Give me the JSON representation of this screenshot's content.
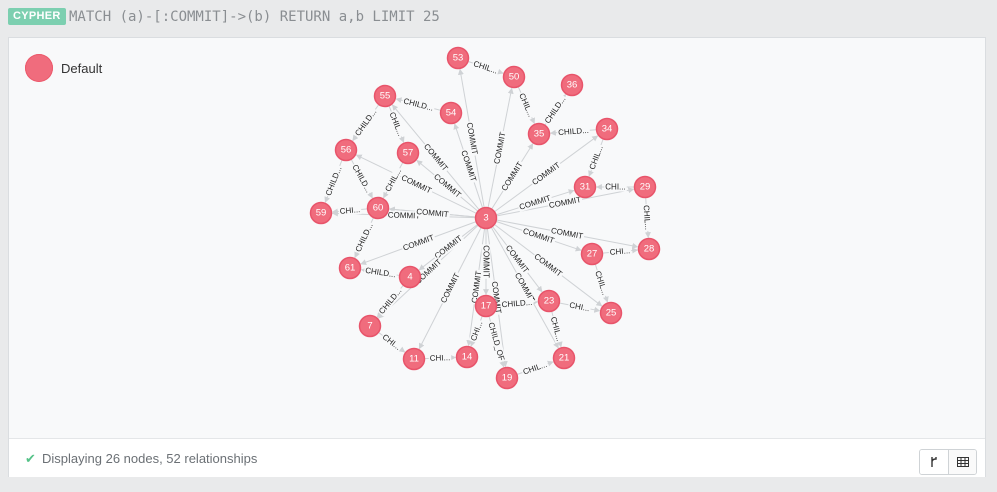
{
  "query": {
    "badge": "CYPHER",
    "text": "MATCH (a)-[:COMMIT]->(b) RETURN a,b LIMIT 25"
  },
  "legend": {
    "label": "Default",
    "color": "#f06c7d"
  },
  "graph": {
    "nodes": [
      {
        "id": "53"
      },
      {
        "id": "50"
      },
      {
        "id": "36"
      },
      {
        "id": "55"
      },
      {
        "id": "54"
      },
      {
        "id": "35"
      },
      {
        "id": "34"
      },
      {
        "id": "56"
      },
      {
        "id": "57"
      },
      {
        "id": "31"
      },
      {
        "id": "29"
      },
      {
        "id": "59"
      },
      {
        "id": "60"
      },
      {
        "id": "3"
      },
      {
        "id": "28"
      },
      {
        "id": "27"
      },
      {
        "id": "61"
      },
      {
        "id": "4"
      },
      {
        "id": "23"
      },
      {
        "id": "17"
      },
      {
        "id": "25"
      },
      {
        "id": "7"
      },
      {
        "id": "11"
      },
      {
        "id": "14"
      },
      {
        "id": "21"
      },
      {
        "id": "19"
      }
    ],
    "commit_label": "COMMIT",
    "child_short": "CHILD...",
    "child_shorter": "CHI...",
    "child_full": "CHILD_OF",
    "commit_targets": [
      "53",
      "50",
      "54",
      "35",
      "34",
      "55",
      "57",
      "56",
      "31",
      "60",
      "29",
      "59",
      "61",
      "4",
      "28",
      "27",
      "25",
      "23",
      "17",
      "14",
      "21",
      "7",
      "11",
      "19"
    ],
    "child_edges": [
      {
        "from": "53",
        "to": "50",
        "label": "CHIL..."
      },
      {
        "from": "54",
        "to": "55",
        "label": "CHILD..."
      },
      {
        "from": "50",
        "to": "35",
        "label": "CHIL..."
      },
      {
        "from": "35",
        "to": "36",
        "label": "CHILD..."
      },
      {
        "from": "34",
        "to": "35",
        "label": "CHILD..."
      },
      {
        "from": "55",
        "to": "56",
        "label": "CHILD..."
      },
      {
        "from": "55",
        "to": "57",
        "label": "CHIL..."
      },
      {
        "from": "56",
        "to": "59",
        "label": "CHILD..."
      },
      {
        "from": "56",
        "to": "60",
        "label": "CHILD..."
      },
      {
        "from": "34",
        "to": "31",
        "label": "CHIL..."
      },
      {
        "from": "29",
        "to": "31",
        "label": "CHI..."
      },
      {
        "from": "29",
        "to": "28",
        "label": "CHIL..."
      },
      {
        "from": "60",
        "to": "59",
        "label": "CHI..."
      },
      {
        "from": "60",
        "to": "61",
        "label": "CHILD..."
      },
      {
        "from": "27",
        "to": "28",
        "label": "CHI..."
      },
      {
        "from": "27",
        "to": "25",
        "label": "CHIL..."
      },
      {
        "from": "23",
        "to": "25",
        "label": "CHI..."
      },
      {
        "from": "17",
        "to": "23",
        "label": "CHILD..."
      },
      {
        "from": "23",
        "to": "21",
        "label": "CHIL..."
      },
      {
        "from": "4",
        "to": "7",
        "label": "CHILD..."
      },
      {
        "from": "7",
        "to": "11",
        "label": "CHI..."
      },
      {
        "from": "11",
        "to": "14",
        "label": "CHI..."
      },
      {
        "from": "17",
        "to": "14",
        "label": "CHI..."
      },
      {
        "from": "17",
        "to": "19",
        "label": "CHILD_OF"
      },
      {
        "from": "19",
        "to": "21",
        "label": "CHIL..."
      },
      {
        "from": "57",
        "to": "60",
        "label": "CHIL..."
      },
      {
        "from": "4",
        "to": "61",
        "label": "CHILD..."
      },
      {
        "from": "3",
        "to": "60",
        "label": "COMMIT"
      }
    ]
  },
  "status": {
    "text": "Displaying 26 nodes, 52 relationships",
    "check_icon": "check-icon"
  },
  "view_toggle": {
    "graph_icon": "graph-view-icon",
    "table_icon": "table-view-icon"
  }
}
